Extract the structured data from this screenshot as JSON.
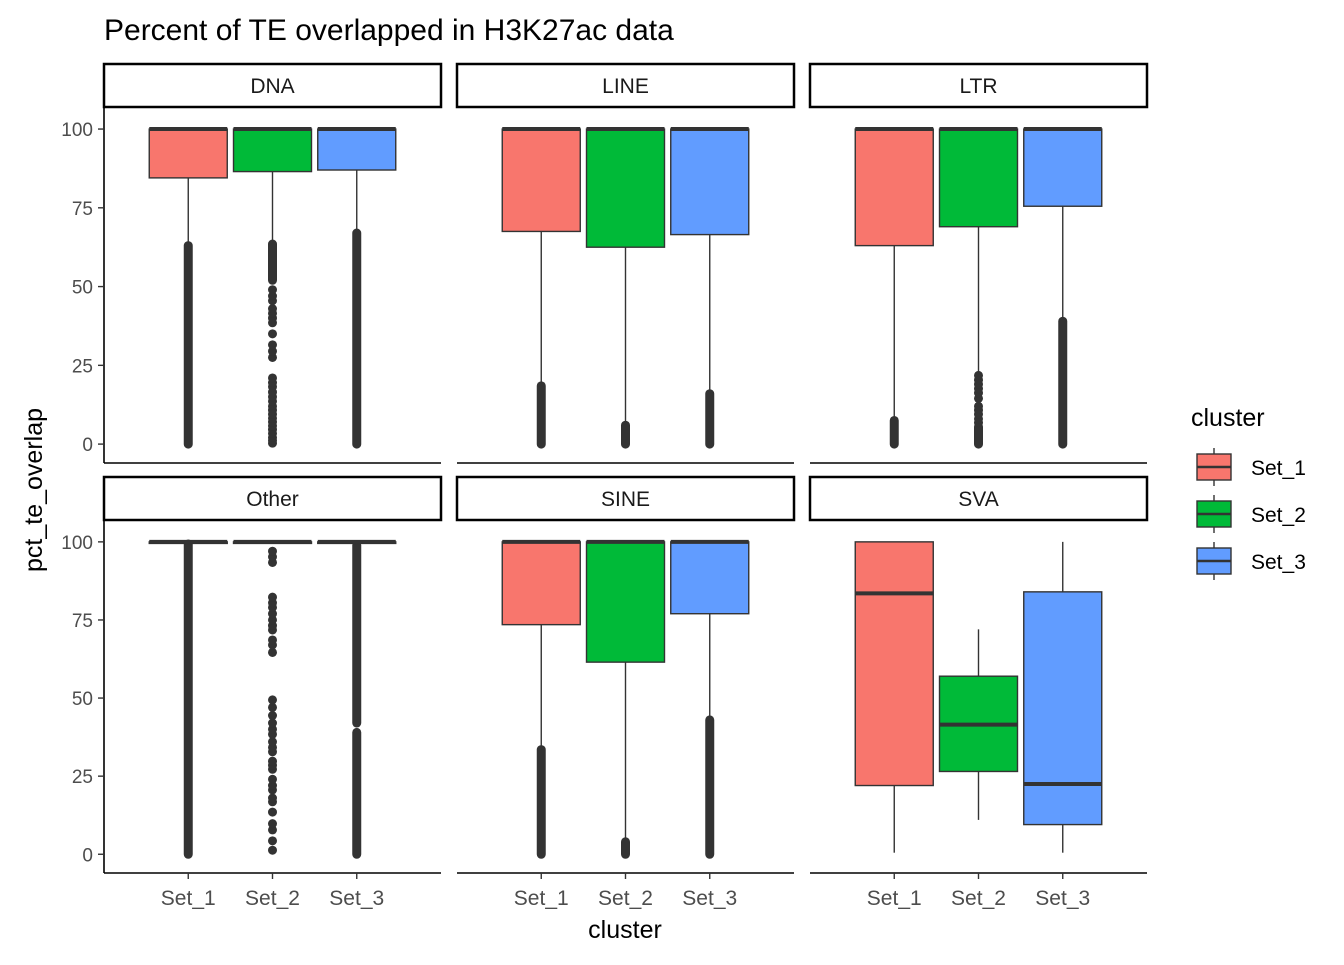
{
  "chart_data": {
    "type": "boxplot",
    "title": "Percent of TE overlapped in H3K27ac data",
    "xlabel": "cluster",
    "ylabel": "pct_te_overlap",
    "ylim": [
      -6,
      107
    ],
    "y_ticks": [
      0,
      25,
      50,
      75,
      100
    ],
    "categories": [
      "Set_1",
      "Set_2",
      "Set_3"
    ],
    "legend": {
      "title": "cluster",
      "entries": [
        {
          "label": "Set_1",
          "color": "#F8766D"
        },
        {
          "label": "Set_2",
          "color": "#00BA38"
        },
        {
          "label": "Set_3",
          "color": "#619CFF"
        }
      ]
    },
    "facets": [
      {
        "name": "DNA",
        "boxes": [
          {
            "category": "Set_1",
            "q1": 84.5,
            "median": 100,
            "q3": 100,
            "whisker_low": 63,
            "whisker_high": 100,
            "outliers": {
              "dense": [
                [
                  0,
                  63
                ]
              ],
              "points": []
            }
          },
          {
            "category": "Set_2",
            "q1": 86.5,
            "median": 100,
            "q3": 100,
            "whisker_low": 64,
            "whisker_high": 100,
            "outliers": {
              "dense": [
                [
                  52,
                  63.5
                ]
              ],
              "points": [
                0.3,
                1.2,
                2.1,
                3.4,
                4.6,
                5.8,
                7.0,
                8.2,
                9.5,
                10.8,
                12.0,
                13.6,
                15.0,
                16.5,
                18.2,
                19.5,
                21.0,
                27.5,
                29.5,
                31.5,
                35.0,
                38.5,
                40.0,
                41.5,
                43.0,
                45.5,
                47.0,
                49.0
              ]
            }
          },
          {
            "category": "Set_3",
            "q1": 87,
            "median": 100,
            "q3": 100,
            "whisker_low": 67.5,
            "whisker_high": 100,
            "outliers": {
              "dense": [
                [
                  0,
                  67
                ]
              ],
              "points": []
            }
          }
        ]
      },
      {
        "name": "LINE",
        "boxes": [
          {
            "category": "Set_1",
            "q1": 67.5,
            "median": 100,
            "q3": 100,
            "whisker_low": 19,
            "whisker_high": 100,
            "outliers": {
              "dense": [
                [
                  0,
                  18.5
                ]
              ],
              "points": []
            }
          },
          {
            "category": "Set_2",
            "q1": 62.5,
            "median": 100,
            "q3": 100,
            "whisker_low": 6.5,
            "whisker_high": 100,
            "outliers": {
              "dense": [
                [
                  0,
                  6
                ]
              ],
              "points": []
            }
          },
          {
            "category": "Set_3",
            "q1": 66.5,
            "median": 100,
            "q3": 100,
            "whisker_low": 16.5,
            "whisker_high": 100,
            "outliers": {
              "dense": [
                [
                  0,
                  16
                ]
              ],
              "points": []
            }
          }
        ]
      },
      {
        "name": "LTR",
        "boxes": [
          {
            "category": "Set_1",
            "q1": 63,
            "median": 100,
            "q3": 100,
            "whisker_low": 8,
            "whisker_high": 100,
            "outliers": {
              "dense": [
                [
                  0,
                  7.5
                ]
              ],
              "points": []
            }
          },
          {
            "category": "Set_2",
            "q1": 69,
            "median": 100,
            "q3": 100,
            "whisker_low": 22,
            "whisker_high": 100,
            "outliers": {
              "dense": [
                [
                  0,
                  5.5
                ]
              ],
              "points": [
                6.8,
                8.0,
                9.5,
                10.8,
                12.0,
                14.5,
                16.2,
                17.6,
                19.0,
                20.4,
                21.8
              ]
            }
          },
          {
            "category": "Set_3",
            "q1": 75.5,
            "median": 100,
            "q3": 100,
            "whisker_low": 39.5,
            "whisker_high": 100,
            "outliers": {
              "dense": [
                [
                  0,
                  39
                ]
              ],
              "points": []
            }
          }
        ]
      },
      {
        "name": "Other",
        "boxes": [
          {
            "category": "Set_1",
            "q1": 99.5,
            "median": 100,
            "q3": 100,
            "whisker_low": 99.5,
            "whisker_high": 100,
            "outliers": {
              "dense": [
                [
                  0,
                  99.3
                ]
              ],
              "points": []
            }
          },
          {
            "category": "Set_2",
            "q1": 99.5,
            "median": 100,
            "q3": 100,
            "whisker_low": 99.5,
            "whisker_high": 100,
            "outliers": {
              "dense": [],
              "points": [
                1.3,
                4.3,
                7.8,
                9.8,
                13.5,
                16.8,
                18.0,
                20.6,
                22.0,
                24.0,
                27.2,
                28.5,
                29.8,
                32.8,
                34.2,
                36.0,
                38.4,
                40.0,
                42.0,
                44.4,
                47.0,
                49.4,
                64.6,
                67.0,
                68.6,
                71.8,
                73.2,
                75.0,
                77.0,
                79.0,
                80.5,
                82.3,
                93.4,
                95.2,
                97.0
              ]
            }
          },
          {
            "category": "Set_3",
            "q1": 99.5,
            "median": 100,
            "q3": 100,
            "whisker_low": 99.5,
            "whisker_high": 100,
            "outliers": {
              "dense": [
                [
                  0,
                  39
                ],
                [
                  42,
                  99
                ]
              ],
              "points": []
            }
          }
        ]
      },
      {
        "name": "SINE",
        "boxes": [
          {
            "category": "Set_1",
            "q1": 73.5,
            "median": 100,
            "q3": 100,
            "whisker_low": 34,
            "whisker_high": 100,
            "outliers": {
              "dense": [
                [
                  0,
                  33.5
                ]
              ],
              "points": []
            }
          },
          {
            "category": "Set_2",
            "q1": 61.5,
            "median": 100,
            "q3": 100,
            "whisker_low": 4.5,
            "whisker_high": 100,
            "outliers": {
              "dense": [
                [
                  0,
                  4
                ]
              ],
              "points": []
            }
          },
          {
            "category": "Set_3",
            "q1": 77,
            "median": 100,
            "q3": 100,
            "whisker_low": 43.5,
            "whisker_high": 100,
            "outliers": {
              "dense": [
                [
                  0,
                  43
                ]
              ],
              "points": []
            }
          }
        ]
      },
      {
        "name": "SVA",
        "boxes": [
          {
            "category": "Set_1",
            "q1": 22,
            "median": 83.5,
            "q3": 100,
            "whisker_low": 0.5,
            "whisker_high": 100,
            "outliers": {
              "dense": [],
              "points": []
            }
          },
          {
            "category": "Set_2",
            "q1": 26.5,
            "median": 41.5,
            "q3": 57,
            "whisker_low": 11,
            "whisker_high": 72,
            "outliers": {
              "dense": [],
              "points": []
            }
          },
          {
            "category": "Set_3",
            "q1": 9.5,
            "median": 22.5,
            "q3": 84,
            "whisker_low": 0.5,
            "whisker_high": 100,
            "outliers": {
              "dense": [],
              "points": []
            }
          }
        ]
      }
    ]
  }
}
